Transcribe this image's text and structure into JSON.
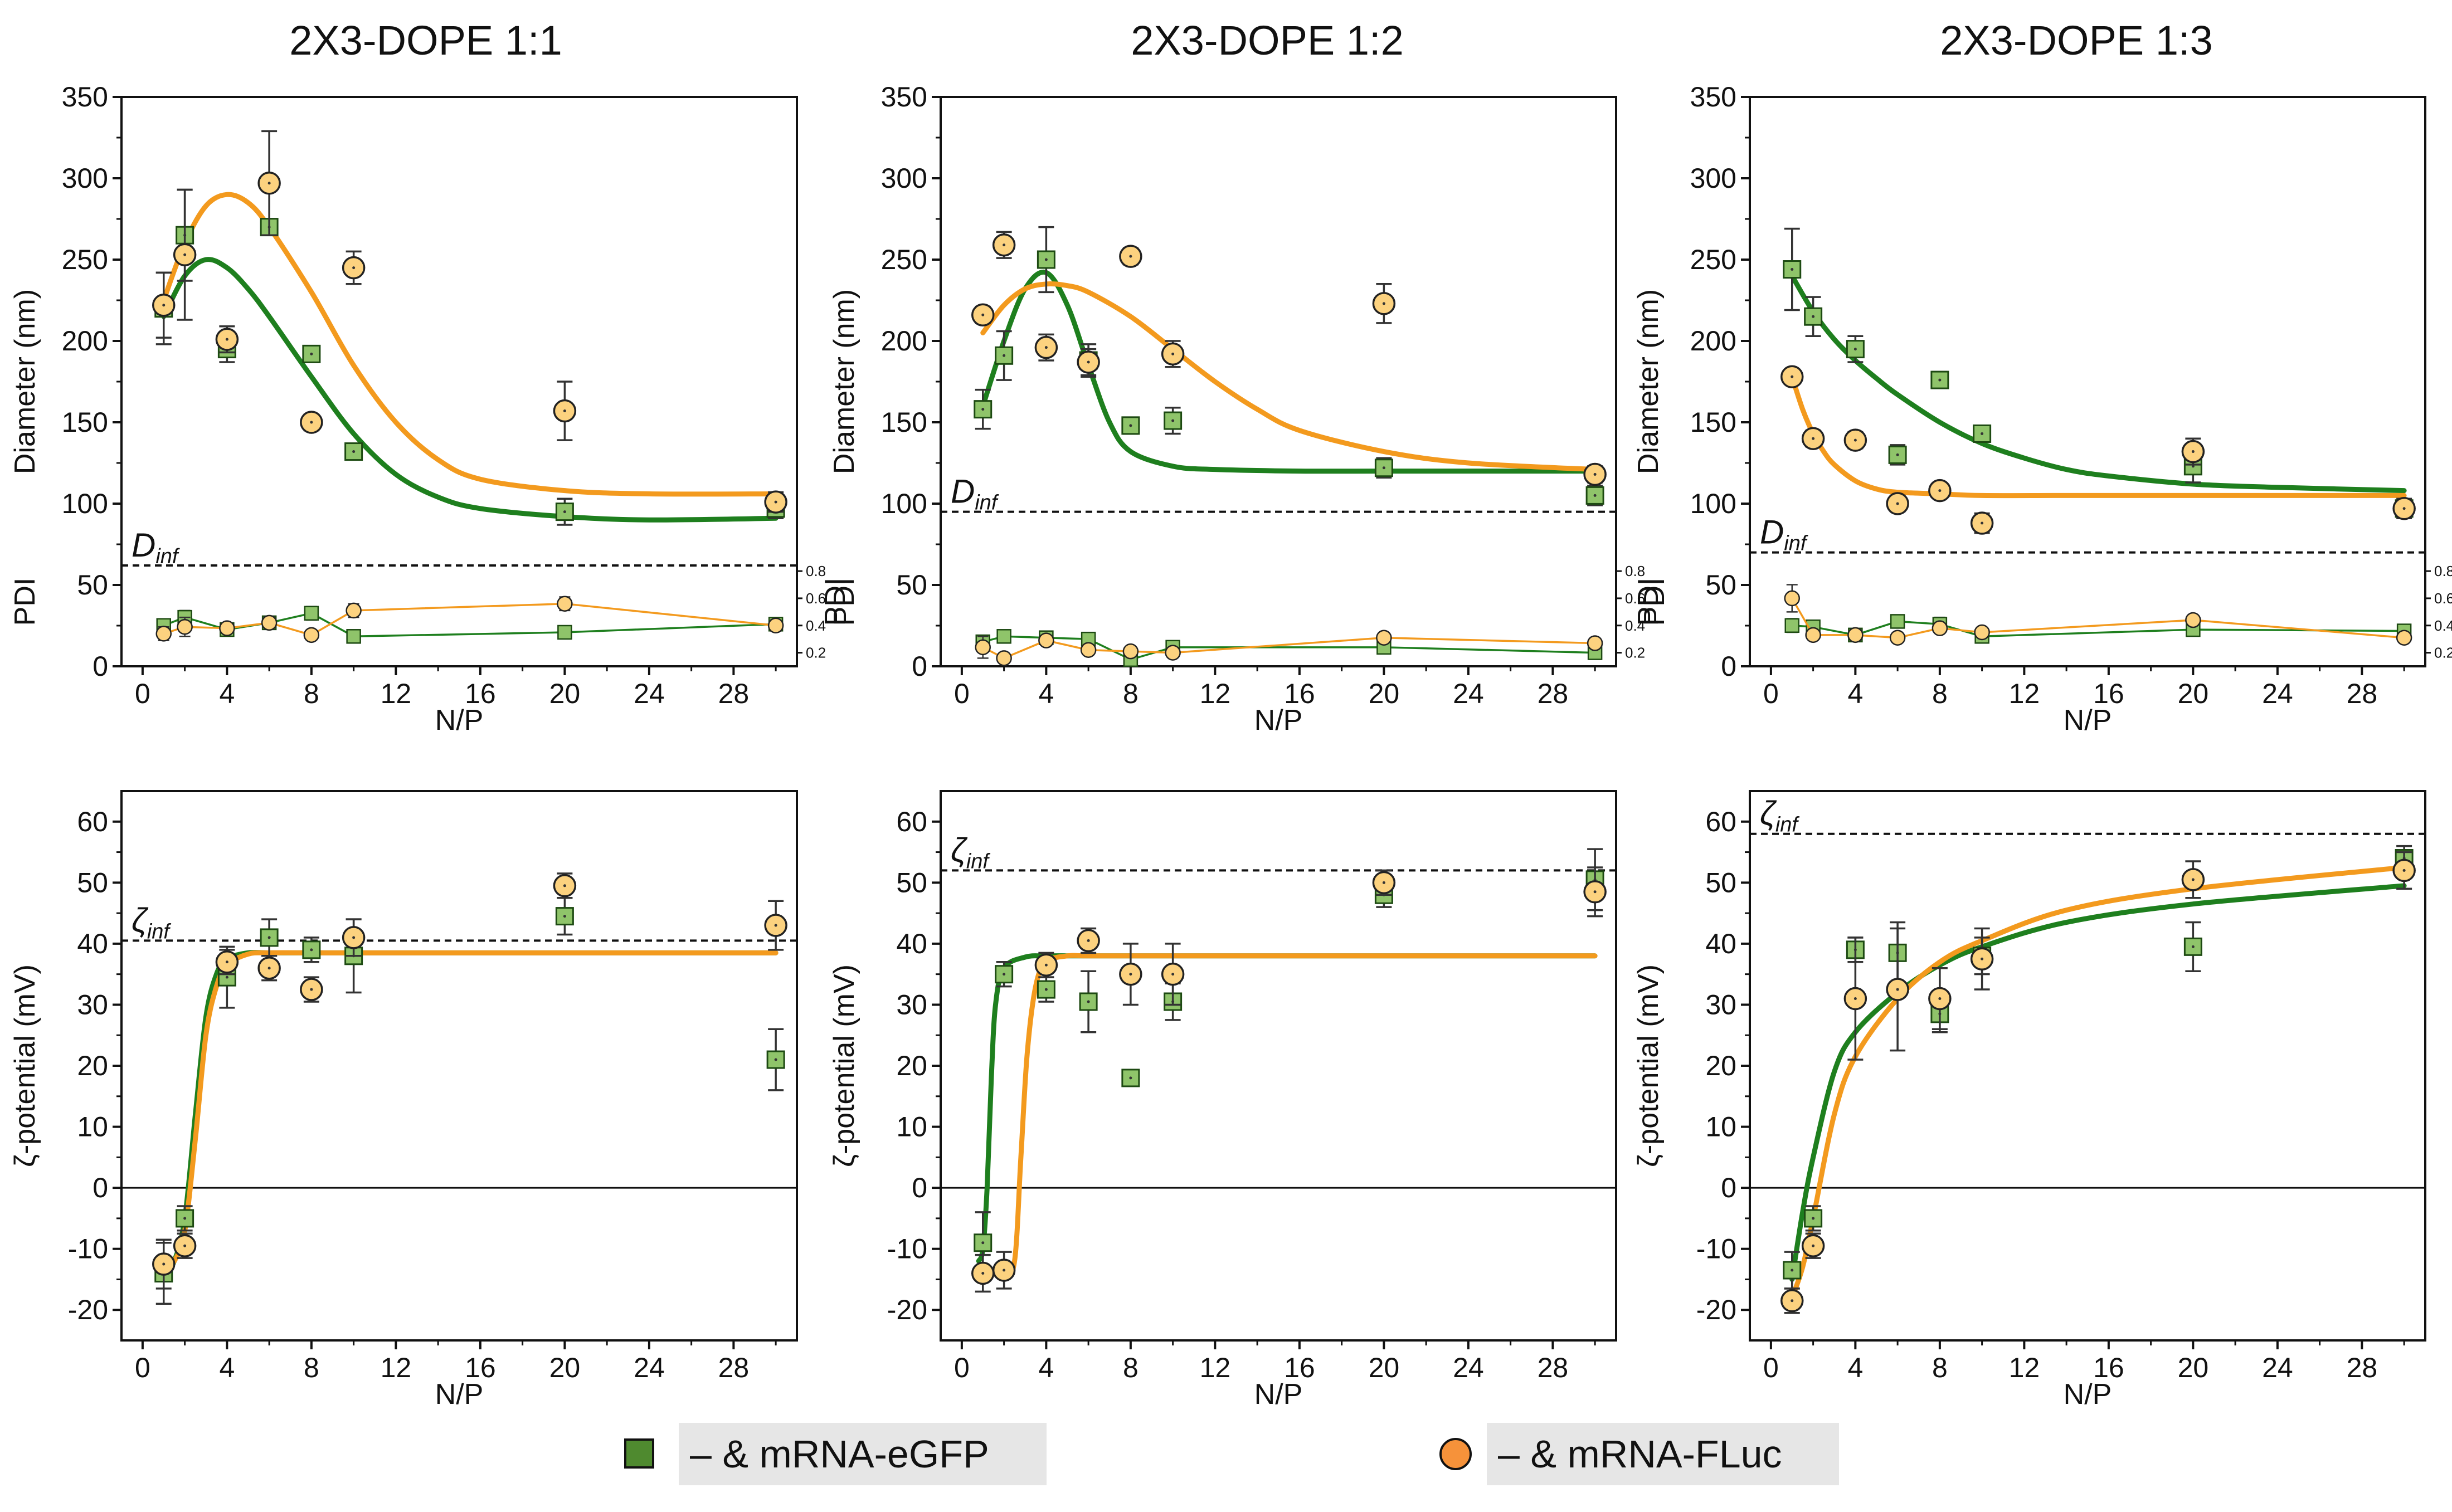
{
  "legend": {
    "egfp_label": "– & mRNA-eGFP",
    "fluc_label": "– & mRNA-FLuc"
  },
  "colors": {
    "egfp_fill": "#8fc46a",
    "egfp_line": "#1e7f1e",
    "egfp_legend": "#4f8a2f",
    "fluc_fill": "#fcd27f",
    "fluc_line": "#f39a1e",
    "fluc_legend": "#f6923a",
    "legend_bg": "#e6e6e6"
  },
  "axes_common": {
    "xlabel": "N/P",
    "xticks": [
      0,
      4,
      8,
      12,
      16,
      20,
      24,
      28
    ],
    "xlim": [
      -1,
      31
    ],
    "diameter": {
      "ylabel": "Diameter (nm)",
      "ylim": [
        0,
        350
      ],
      "yticks": [
        0,
        50,
        100,
        150,
        200,
        250,
        300,
        350
      ]
    },
    "pdi": {
      "label": "PDI",
      "ylim": [
        0.1,
        1.0
      ],
      "ticks": [
        "0.2",
        "0.4",
        "0.6",
        "0.8"
      ]
    },
    "zeta": {
      "ylabel": "ζ-potential (mV)",
      "ylim": [
        -25,
        65
      ],
      "yticks": [
        -20,
        -10,
        0,
        10,
        20,
        30,
        40,
        50,
        60
      ]
    }
  },
  "chart_data": [
    {
      "type": "scatter",
      "title": "2X3-DOPE 1:1",
      "xlabel": "N/P",
      "ylabel": "Diameter (nm)",
      "ref_line": {
        "label": "D",
        "subscript": "inf",
        "y": 62
      },
      "series": [
        {
          "name": "– & mRNA-eGFP",
          "marker": "square",
          "x": [
            1,
            2,
            4,
            6,
            8,
            10,
            20,
            30
          ],
          "y": [
            220,
            265,
            195,
            270,
            192,
            132,
            95,
            97
          ],
          "err": [
            22,
            28,
            8,
            5,
            5,
            4,
            8,
            6
          ],
          "fit_x": [
            1,
            2,
            3,
            4,
            5,
            6,
            8,
            10,
            12,
            14,
            16,
            20,
            24,
            30
          ],
          "fit_y": [
            215,
            240,
            250,
            245,
            232,
            215,
            178,
            143,
            118,
            104,
            97,
            92,
            90,
            91
          ]
        },
        {
          "name": "– & mRNA-FLuc",
          "marker": "circle",
          "x": [
            1,
            2,
            4,
            6,
            8,
            10,
            20,
            30
          ],
          "y": [
            222,
            253,
            201,
            297,
            150,
            245,
            157,
            101
          ],
          "err": [
            20,
            40,
            8,
            32,
            5,
            10,
            18,
            6
          ],
          "fit_x": [
            1,
            2,
            3,
            4,
            5,
            6,
            8,
            10,
            12,
            14,
            16,
            20,
            24,
            30
          ],
          "fit_y": [
            225,
            260,
            283,
            290,
            285,
            270,
            230,
            185,
            150,
            127,
            115,
            108,
            106,
            106
          ]
        }
      ],
      "pdi": [
        {
          "name": "– & mRNA-eGFP",
          "x": [
            1,
            2,
            4,
            6,
            8,
            10,
            20,
            30
          ],
          "y": [
            0.4,
            0.46,
            0.37,
            0.42,
            0.49,
            0.32,
            0.35,
            0.41
          ],
          "err": [
            0.04,
            0.05,
            0.02,
            0.03,
            0.05,
            0.02,
            0.02,
            0.03
          ]
        },
        {
          "name": "– & mRNA-FLuc",
          "x": [
            1,
            2,
            4,
            6,
            8,
            10,
            20,
            30
          ],
          "y": [
            0.34,
            0.39,
            0.38,
            0.42,
            0.33,
            0.51,
            0.56,
            0.4
          ],
          "err": [
            0.05,
            0.07,
            0.03,
            0.03,
            0.02,
            0.05,
            0.05,
            0.04
          ]
        }
      ]
    },
    {
      "type": "scatter",
      "title": "2X3-DOPE 1:2",
      "xlabel": "N/P",
      "ylabel": "Diameter (nm)",
      "ref_line": {
        "label": "D",
        "subscript": "inf",
        "y": 95
      },
      "series": [
        {
          "name": "– & mRNA-eGFP",
          "marker": "square",
          "x": [
            1,
            2,
            4,
            6,
            8,
            10,
            20,
            30
          ],
          "y": [
            158,
            191,
            250,
            188,
            148,
            151,
            122,
            105
          ],
          "err": [
            12,
            15,
            20,
            10,
            5,
            8,
            6,
            6
          ],
          "fit_x": [
            1,
            2,
            3,
            4,
            5,
            6,
            7,
            8,
            10,
            12,
            16,
            20,
            30
          ],
          "fit_y": [
            160,
            200,
            232,
            242,
            222,
            185,
            150,
            132,
            123,
            121,
            120,
            120,
            120
          ]
        },
        {
          "name": "– & mRNA-FLuc",
          "marker": "circle",
          "x": [
            1,
            2,
            4,
            6,
            8,
            10,
            20,
            30
          ],
          "y": [
            216,
            259,
            196,
            187,
            252,
            192,
            223,
            118
          ],
          "err": [
            5,
            8,
            8,
            8,
            5,
            8,
            12,
            5
          ],
          "fit_x": [
            1,
            2,
            3,
            4,
            5,
            6,
            8,
            10,
            12,
            14,
            16,
            20,
            24,
            30
          ],
          "fit_y": [
            205,
            222,
            232,
            235,
            234,
            230,
            215,
            195,
            175,
            158,
            145,
            132,
            125,
            121
          ]
        }
      ],
      "pdi": [
        {
          "name": "– & mRNA-eGFP",
          "x": [
            1,
            2,
            4,
            6,
            8,
            10,
            20,
            30
          ],
          "y": [
            0.28,
            0.32,
            0.31,
            0.3,
            0.15,
            0.24,
            0.24,
            0.2
          ],
          "err": [
            0.04,
            0.02,
            0.03,
            0.04,
            0.03,
            0.02,
            0.02,
            0.02
          ]
        },
        {
          "name": "– & mRNA-FLuc",
          "x": [
            1,
            2,
            4,
            6,
            8,
            10,
            20,
            30
          ],
          "y": [
            0.24,
            0.16,
            0.29,
            0.22,
            0.21,
            0.2,
            0.31,
            0.27
          ],
          "err": [
            0.08,
            0.02,
            0.03,
            0.02,
            0.02,
            0.02,
            0.03,
            0.02
          ]
        }
      ]
    },
    {
      "type": "scatter",
      "title": "2X3-DOPE 1:3",
      "xlabel": "N/P",
      "ylabel": "Diameter (nm)",
      "ref_line": {
        "label": "D",
        "subscript": "inf",
        "y": 70
      },
      "series": [
        {
          "name": "– & mRNA-eGFP",
          "marker": "square",
          "x": [
            1,
            2,
            4,
            6,
            8,
            10,
            20,
            30
          ],
          "y": [
            244,
            215,
            195,
            130,
            176,
            143,
            123,
            97
          ],
          "err": [
            25,
            12,
            8,
            6,
            5,
            5,
            10,
            6
          ],
          "fit_x": [
            1,
            2,
            3,
            4,
            5,
            6,
            8,
            10,
            12,
            14,
            16,
            20,
            24,
            30
          ],
          "fit_y": [
            240,
            218,
            201,
            188,
            177,
            167,
            150,
            137,
            128,
            121,
            117,
            112,
            110,
            108
          ]
        },
        {
          "name": "– & mRNA-FLuc",
          "marker": "circle",
          "x": [
            1,
            2,
            4,
            6,
            8,
            10,
            20,
            30
          ],
          "y": [
            178,
            140,
            139,
            100,
            108,
            88,
            132,
            97
          ],
          "err": [
            3,
            5,
            5,
            5,
            3,
            6,
            8,
            4
          ],
          "fit_x": [
            1,
            1.5,
            2,
            2.5,
            3,
            4,
            5,
            6,
            8,
            10,
            14,
            20,
            30
          ],
          "fit_y": [
            178,
            158,
            143,
            132,
            124,
            114,
            109,
            107,
            106,
            105,
            105,
            105,
            105
          ]
        }
      ],
      "pdi": [
        {
          "name": "– & mRNA-eGFP",
          "x": [
            1,
            2,
            4,
            6,
            8,
            10,
            20,
            30
          ],
          "y": [
            0.4,
            0.39,
            0.33,
            0.43,
            0.41,
            0.32,
            0.37,
            0.36
          ],
          "err": [
            0.05,
            0.04,
            0.03,
            0.03,
            0.05,
            0.02,
            0.03,
            0.02
          ]
        },
        {
          "name": "– & mRNA-FLuc",
          "x": [
            1,
            2,
            4,
            6,
            8,
            10,
            20,
            30
          ],
          "y": [
            0.6,
            0.33,
            0.33,
            0.31,
            0.38,
            0.35,
            0.44,
            0.31
          ],
          "err": [
            0.1,
            0.03,
            0.03,
            0.02,
            0.03,
            0.03,
            0.03,
            0.03
          ]
        }
      ]
    },
    {
      "type": "scatter",
      "title": "",
      "xlabel": "N/P",
      "ylabel": "ζ-potential (mV)",
      "ref_line": {
        "label": "ζ",
        "subscript": "inf",
        "y": 40.5
      },
      "series": [
        {
          "name": "– & mRNA-eGFP",
          "marker": "square",
          "x": [
            1,
            2,
            4,
            6,
            8,
            10,
            20,
            30
          ],
          "y": [
            -14,
            -5,
            34.5,
            41,
            39,
            38,
            44.5,
            21
          ],
          "err": [
            5,
            2,
            5,
            3,
            2,
            6,
            3,
            5
          ],
          "fit_x": [
            1,
            1.5,
            2,
            2.5,
            3,
            3.5,
            4,
            5,
            6,
            8,
            10,
            20,
            30
          ],
          "fit_y": [
            -14,
            -12,
            -5,
            12,
            28,
            35,
            37.5,
            38.5,
            38.5,
            38.5,
            38.5,
            38.5,
            38.5
          ]
        },
        {
          "name": "– & mRNA-FLuc",
          "marker": "circle",
          "x": [
            1,
            2,
            4,
            6,
            8,
            10,
            20,
            30
          ],
          "y": [
            -12.5,
            -9.5,
            37,
            36,
            32.5,
            41,
            49.5,
            43
          ],
          "err": [
            4,
            2,
            2,
            2,
            2,
            3,
            2,
            4
          ],
          "fit_x": [
            1,
            1.5,
            2,
            2.5,
            3,
            3.5,
            4,
            5,
            6,
            8,
            10,
            20,
            30
          ],
          "fit_y": [
            -13,
            -12,
            -7,
            8,
            25,
            33,
            36.5,
            38.3,
            38.5,
            38.5,
            38.5,
            38.5,
            38.5
          ]
        }
      ]
    },
    {
      "type": "scatter",
      "title": "",
      "xlabel": "N/P",
      "ylabel": "ζ-potential (mV)",
      "ref_line": {
        "label": "ζ",
        "subscript": "inf",
        "y": 52
      },
      "series": [
        {
          "name": "– & mRNA-eGFP",
          "marker": "square",
          "x": [
            1,
            2,
            4,
            6,
            8,
            10,
            20,
            30
          ],
          "y": [
            -9,
            35,
            32.5,
            30.5,
            18,
            30.5,
            48,
            50.5
          ],
          "err": [
            5,
            2,
            2,
            5,
            1,
            3,
            2,
            5
          ],
          "fit_x": [
            0.8,
            1,
            1.2,
            1.4,
            1.6,
            2,
            3,
            4,
            6,
            10,
            20,
            30
          ],
          "fit_y": [
            -12,
            -10,
            0,
            18,
            30,
            36,
            37.8,
            38,
            38,
            38,
            38,
            38
          ]
        },
        {
          "name": "– & mRNA-FLuc",
          "marker": "circle",
          "x": [
            1,
            2,
            4,
            6,
            8,
            10,
            20,
            30
          ],
          "y": [
            -14,
            -13.5,
            36.5,
            40.5,
            35,
            35,
            50,
            48.5
          ],
          "err": [
            3,
            3,
            2,
            2,
            5,
            5,
            2,
            4
          ],
          "fit_x": [
            1,
            2,
            2.5,
            2.8,
            3.1,
            3.5,
            4,
            5,
            6,
            10,
            20,
            30
          ],
          "fit_y": [
            -14,
            -14,
            -12,
            5,
            22,
            33,
            37,
            38,
            38,
            38,
            38,
            38
          ]
        }
      ]
    },
    {
      "type": "scatter",
      "title": "",
      "xlabel": "N/P",
      "ylabel": "ζ-potential (mV)",
      "ref_line": {
        "label": "ζ",
        "subscript": "inf",
        "y": 58
      },
      "series": [
        {
          "name": "– & mRNA-eGFP",
          "marker": "square",
          "x": [
            1,
            2,
            4,
            6,
            8,
            10,
            20,
            30
          ],
          "y": [
            -13.5,
            -5,
            39,
            38.5,
            28.5,
            38,
            39.5,
            54
          ],
          "err": [
            3,
            2,
            2,
            5,
            3,
            3,
            4,
            2
          ],
          "fit_x": [
            1,
            1.5,
            2,
            3,
            4,
            6,
            8,
            10,
            14,
            20,
            30
          ],
          "fit_y": [
            -15,
            -4,
            5,
            19,
            25.5,
            32,
            36.5,
            39.5,
            43.5,
            46.5,
            49.5
          ]
        },
        {
          "name": "– & mRNA-FLuc",
          "marker": "circle",
          "x": [
            1,
            2,
            4,
            6,
            8,
            10,
            20,
            30
          ],
          "y": [
            -18.5,
            -9.5,
            31,
            32.5,
            31,
            37.5,
            50.5,
            52
          ],
          "err": [
            2,
            2,
            10,
            10,
            5,
            5,
            3,
            3
          ],
          "fit_x": [
            1,
            1.5,
            2,
            3,
            4,
            6,
            8,
            10,
            14,
            20,
            30
          ],
          "fit_y": [
            -18,
            -13,
            -5,
            12,
            21.5,
            31,
            37,
            40.5,
            45.5,
            49,
            52.5
          ]
        }
      ]
    }
  ]
}
